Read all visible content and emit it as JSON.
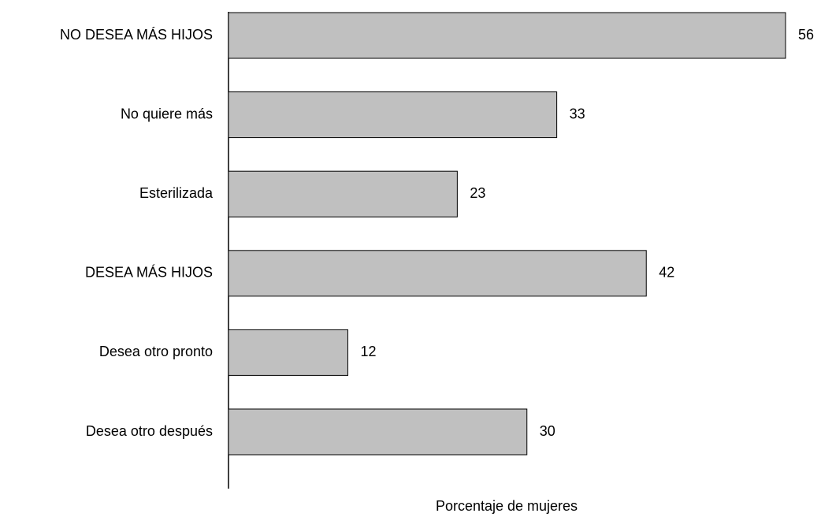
{
  "chart_data": {
    "type": "hbar",
    "categories": [
      "NO DESEA MÁS HIJOS",
      "No quiere más",
      "Esterilizada",
      "DESEA MÁS HIJOS",
      "Desea otro pronto",
      "Desea otro después"
    ],
    "values": [
      56,
      33,
      23,
      42,
      12,
      30
    ],
    "color": "#c0c0c0",
    "xlabel": "Porcentaje de mujeres"
  }
}
